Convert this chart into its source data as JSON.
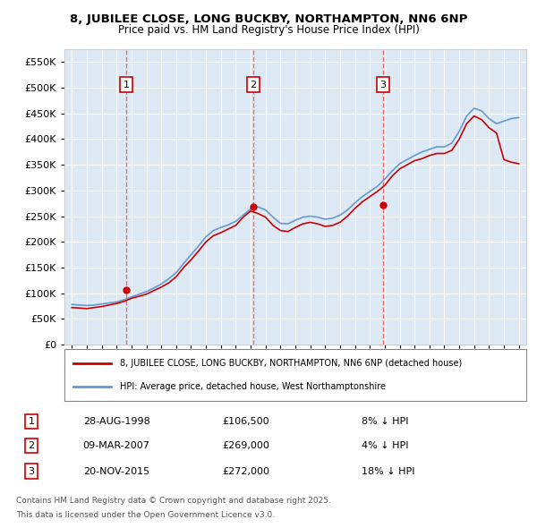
{
  "title_line1": "8, JUBILEE CLOSE, LONG BUCKBY, NORTHAMPTON, NN6 6NP",
  "title_line2": "Price paid vs. HM Land Registry's House Price Index (HPI)",
  "background_color": "#dce9f5",
  "plot_bg_color": "#dce9f5",
  "legend_line1": "8, JUBILEE CLOSE, LONG BUCKBY, NORTHAMPTON, NN6 6NP (detached house)",
  "legend_line2": "HPI: Average price, detached house, West Northamptonshire",
  "footer_line1": "Contains HM Land Registry data © Crown copyright and database right 2025.",
  "footer_line2": "This data is licensed under the Open Government Licence v3.0.",
  "sales": [
    {
      "label": "1",
      "date_num": 1998.65,
      "price": 106500,
      "date_str": "28-AUG-1998",
      "pct": "8% ↓ HPI"
    },
    {
      "label": "2",
      "date_num": 2007.18,
      "price": 269000,
      "date_str": "09-MAR-2007",
      "pct": "4% ↓ HPI"
    },
    {
      "label": "3",
      "date_num": 2015.89,
      "price": 272000,
      "date_str": "20-NOV-2015",
      "pct": "18% ↓ HPI"
    }
  ],
  "hpi_x": [
    1995.0,
    1995.5,
    1996.0,
    1996.5,
    1997.0,
    1997.5,
    1998.0,
    1998.5,
    1999.0,
    1999.5,
    2000.0,
    2000.5,
    2001.0,
    2001.5,
    2002.0,
    2002.5,
    2003.0,
    2003.5,
    2004.0,
    2004.5,
    2005.0,
    2005.5,
    2006.0,
    2006.5,
    2007.0,
    2007.5,
    2008.0,
    2008.5,
    2009.0,
    2009.5,
    2010.0,
    2010.5,
    2011.0,
    2011.5,
    2012.0,
    2012.5,
    2013.0,
    2013.5,
    2014.0,
    2014.5,
    2015.0,
    2015.5,
    2016.0,
    2016.5,
    2017.0,
    2017.5,
    2018.0,
    2018.5,
    2019.0,
    2019.5,
    2020.0,
    2020.5,
    2021.0,
    2021.5,
    2022.0,
    2022.5,
    2023.0,
    2023.5,
    2024.0,
    2024.5,
    2025.0
  ],
  "hpi_y": [
    78000,
    77000,
    76000,
    77000,
    79000,
    81000,
    83000,
    87000,
    93000,
    98000,
    103000,
    110000,
    118000,
    128000,
    140000,
    158000,
    175000,
    192000,
    210000,
    222000,
    228000,
    233000,
    240000,
    252000,
    264000,
    268000,
    262000,
    248000,
    236000,
    235000,
    242000,
    248000,
    250000,
    248000,
    244000,
    246000,
    252000,
    262000,
    276000,
    288000,
    298000,
    308000,
    322000,
    338000,
    352000,
    360000,
    368000,
    375000,
    380000,
    385000,
    385000,
    392000,
    415000,
    445000,
    460000,
    455000,
    440000,
    430000,
    435000,
    440000,
    442000
  ],
  "price_x": [
    1995.0,
    1995.5,
    1996.0,
    1996.5,
    1997.0,
    1997.5,
    1998.0,
    1998.5,
    1999.0,
    1999.5,
    2000.0,
    2000.5,
    2001.0,
    2001.5,
    2002.0,
    2002.5,
    2003.0,
    2003.5,
    2004.0,
    2004.5,
    2005.0,
    2005.5,
    2006.0,
    2006.5,
    2007.0,
    2007.5,
    2008.0,
    2008.5,
    2009.0,
    2009.5,
    2010.0,
    2010.5,
    2011.0,
    2011.5,
    2012.0,
    2012.5,
    2013.0,
    2013.5,
    2014.0,
    2014.5,
    2015.0,
    2015.5,
    2016.0,
    2016.5,
    2017.0,
    2017.5,
    2018.0,
    2018.5,
    2019.0,
    2019.5,
    2020.0,
    2020.5,
    2021.0,
    2021.5,
    2022.0,
    2022.5,
    2023.0,
    2023.5,
    2024.0,
    2024.5,
    2025.0
  ],
  "price_y": [
    72000,
    71000,
    70000,
    72000,
    74000,
    77000,
    80000,
    84000,
    90000,
    94000,
    98000,
    105000,
    112000,
    120000,
    132000,
    150000,
    165000,
    182000,
    200000,
    212000,
    218000,
    225000,
    232000,
    248000,
    260000,
    255000,
    248000,
    232000,
    222000,
    220000,
    228000,
    235000,
    238000,
    235000,
    230000,
    232000,
    238000,
    250000,
    265000,
    278000,
    288000,
    298000,
    310000,
    328000,
    342000,
    350000,
    358000,
    362000,
    368000,
    372000,
    372000,
    378000,
    400000,
    430000,
    445000,
    438000,
    422000,
    412000,
    360000,
    355000,
    352000
  ],
  "ylim": [
    0,
    575000
  ],
  "xlim": [
    1994.5,
    2025.5
  ],
  "yticks": [
    0,
    50000,
    100000,
    150000,
    200000,
    250000,
    300000,
    350000,
    400000,
    450000,
    500000,
    550000
  ],
  "xticks": [
    1995,
    1996,
    1997,
    1998,
    1999,
    2000,
    2001,
    2002,
    2003,
    2004,
    2005,
    2006,
    2007,
    2008,
    2009,
    2010,
    2011,
    2012,
    2013,
    2014,
    2015,
    2016,
    2017,
    2018,
    2019,
    2020,
    2021,
    2022,
    2023,
    2024,
    2025
  ],
  "red_color": "#cc0000",
  "blue_color": "#6699cc",
  "vline_color": "#ff6666"
}
